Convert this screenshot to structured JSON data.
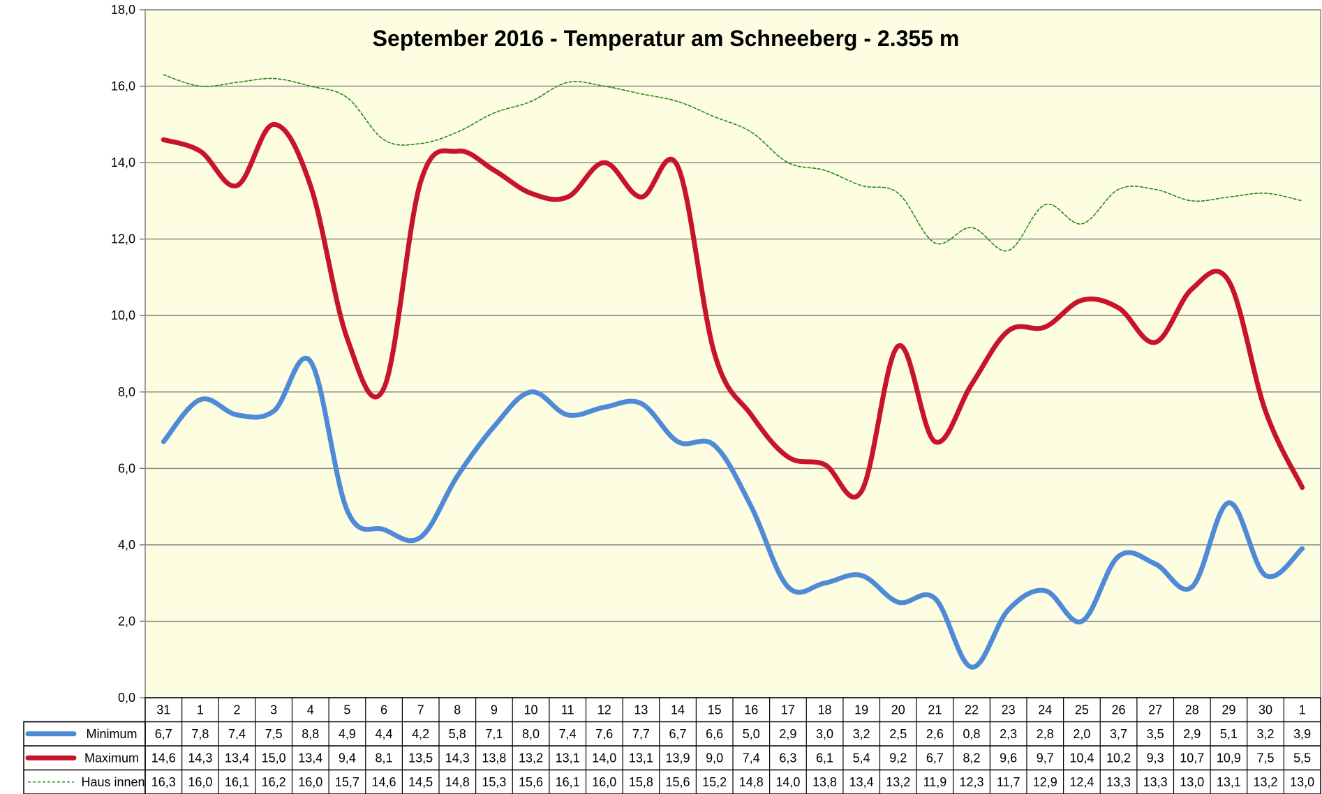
{
  "chart_data": {
    "type": "line",
    "title": "September 2016 - Temperatur am Schneeberg - 2.355 m",
    "xlabel": "",
    "ylabel": "",
    "ylim": [
      0,
      18
    ],
    "y_ticks": [
      "0,0",
      "2,0",
      "4,0",
      "6,0",
      "8,0",
      "10,0",
      "12,0",
      "14,0",
      "16,0",
      "18,0"
    ],
    "grid": true,
    "legend_position": "data-table-left",
    "categories": [
      "31",
      "1",
      "2",
      "3",
      "4",
      "5",
      "6",
      "7",
      "8",
      "9",
      "10",
      "11",
      "12",
      "13",
      "14",
      "15",
      "16",
      "17",
      "18",
      "19",
      "20",
      "21",
      "22",
      "23",
      "24",
      "25",
      "26",
      "27",
      "28",
      "29",
      "30",
      "1"
    ],
    "series": [
      {
        "name": "Minimum",
        "color": "#4f8ad7",
        "style": "solid-thick",
        "values": [
          6.7,
          7.8,
          7.4,
          7.5,
          8.8,
          4.9,
          4.4,
          4.2,
          5.8,
          7.1,
          8.0,
          7.4,
          7.6,
          7.7,
          6.7,
          6.6,
          5.0,
          2.9,
          3.0,
          3.2,
          2.5,
          2.6,
          0.8,
          2.3,
          2.8,
          2.0,
          3.7,
          3.5,
          2.9,
          5.1,
          3.2,
          3.9
        ],
        "labels": [
          "6,7",
          "7,8",
          "7,4",
          "7,5",
          "8,8",
          "4,9",
          "4,4",
          "4,2",
          "5,8",
          "7,1",
          "8,0",
          "7,4",
          "7,6",
          "7,7",
          "6,7",
          "6,6",
          "5,0",
          "2,9",
          "3,0",
          "3,2",
          "2,5",
          "2,6",
          "0,8",
          "2,3",
          "2,8",
          "2,0",
          "3,7",
          "3,5",
          "2,9",
          "5,1",
          "3,2",
          "3,9"
        ]
      },
      {
        "name": "Maximum",
        "color": "#c8142b",
        "style": "solid-thick",
        "values": [
          14.6,
          14.3,
          13.4,
          15.0,
          13.4,
          9.4,
          8.1,
          13.5,
          14.3,
          13.8,
          13.2,
          13.1,
          14.0,
          13.1,
          13.9,
          9.0,
          7.4,
          6.3,
          6.1,
          5.4,
          9.2,
          6.7,
          8.2,
          9.6,
          9.7,
          10.4,
          10.2,
          9.3,
          10.7,
          10.9,
          7.5,
          5.5
        ],
        "labels": [
          "14,6",
          "14,3",
          "13,4",
          "15,0",
          "13,4",
          "9,4",
          "8,1",
          "13,5",
          "14,3",
          "13,8",
          "13,2",
          "13,1",
          "14,0",
          "13,1",
          "13,9",
          "9,0",
          "7,4",
          "6,3",
          "6,1",
          "5,4",
          "9,2",
          "6,7",
          "8,2",
          "9,6",
          "9,7",
          "10,4",
          "10,2",
          "9,3",
          "10,7",
          "10,9",
          "7,5",
          "5,5"
        ]
      },
      {
        "name": "Haus innen",
        "color": "#1a8a1a",
        "style": "dashed-thin",
        "values": [
          16.3,
          16.0,
          16.1,
          16.2,
          16.0,
          15.7,
          14.6,
          14.5,
          14.8,
          15.3,
          15.6,
          16.1,
          16.0,
          15.8,
          15.6,
          15.2,
          14.8,
          14.0,
          13.8,
          13.4,
          13.2,
          11.9,
          12.3,
          11.7,
          12.9,
          12.4,
          13.3,
          13.3,
          13.0,
          13.1,
          13.2,
          13.0
        ],
        "labels": [
          "16,3",
          "16,0",
          "16,1",
          "16,2",
          "16,0",
          "15,7",
          "14,6",
          "14,5",
          "14,8",
          "15,3",
          "15,6",
          "16,1",
          "16,0",
          "15,8",
          "15,6",
          "15,2",
          "14,8",
          "14,0",
          "13,8",
          "13,4",
          "13,2",
          "11,9",
          "12,3",
          "11,7",
          "12,9",
          "12,4",
          "13,3",
          "13,3",
          "13,0",
          "13,1",
          "13,2",
          "13,0"
        ]
      }
    ]
  },
  "colors": {
    "plot_background": "#fdfde2",
    "grid": "#8c8c8c",
    "axis": "#808080",
    "table_border": "#000000"
  }
}
